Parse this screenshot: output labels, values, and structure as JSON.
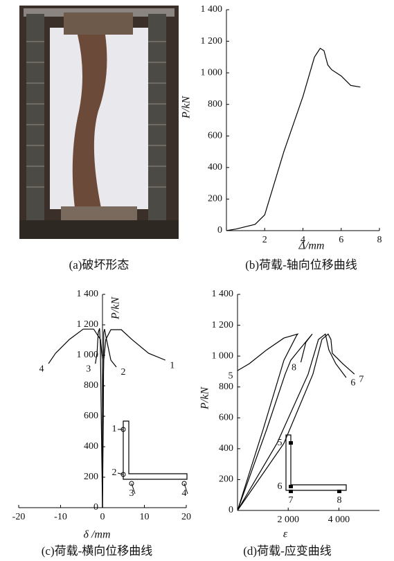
{
  "photo": {
    "caption": "(a)破坏形态"
  },
  "chart_data": [
    {
      "type": "line",
      "caption": "(b)荷载-轴向位移曲线",
      "x_label": "Δ/mm",
      "y_label": "P/kN",
      "xlim": [
        0,
        8
      ],
      "ylim": [
        0,
        1400
      ],
      "xticks": [
        2,
        4,
        6,
        8
      ],
      "yticks": [
        0,
        200,
        400,
        600,
        800,
        {
          "value": 1000,
          "label": "1 000"
        },
        {
          "value": 1200,
          "label": "1 200"
        },
        {
          "value": 1400,
          "label": "1 400"
        }
      ],
      "series": [
        {
          "color": "#000000",
          "x": [
            0,
            0.5,
            1.5,
            2,
            3,
            4,
            4.6,
            4.9,
            5.1,
            5.3,
            5.5,
            6,
            6.5,
            7
          ],
          "values": [
            0,
            10,
            40,
            100,
            500,
            850,
            1100,
            1155,
            1140,
            1050,
            1020,
            980,
            920,
            910
          ]
        }
      ]
    },
    {
      "type": "line",
      "caption": "(c)荷载-横向位移曲线",
      "x_label": "δ /mm",
      "y_label": "P/kN",
      "xlim": [
        -20,
        20
      ],
      "ylim": [
        0,
        1400
      ],
      "xticks": [
        -20,
        -10,
        0,
        10,
        20
      ],
      "yticks": [
        0,
        200,
        400,
        600,
        800,
        {
          "value": 1000,
          "label": "1 000"
        },
        {
          "value": 1200,
          "label": "1 200"
        },
        {
          "value": 1400,
          "label": "1 400"
        }
      ],
      "inset_labels": [
        "1",
        "2",
        "3",
        "4"
      ],
      "series": [
        {
          "name": "1",
          "color": "#000000",
          "x": [
            0,
            0,
            0.3,
            0.8,
            2,
            4.5,
            7,
            11,
            15
          ],
          "values": [
            0,
            605,
            968,
            1104,
            1168,
            1168,
            1104,
            1013,
            968
          ]
        },
        {
          "name": "2",
          "color": "#000000",
          "x": [
            0,
            0.2,
            0.3,
            0.5,
            0.8,
            2,
            3.3
          ],
          "values": [
            0,
            605,
            1150,
            1172,
            1127,
            968,
            923
          ]
        },
        {
          "name": "3",
          "color": "#000000",
          "x": [
            0,
            -0.3,
            -0.5,
            -0.7,
            -1,
            -1.3,
            -1.7
          ],
          "values": [
            0,
            605,
            1059,
            1177,
            1150,
            1013,
            945
          ]
        },
        {
          "name": "4",
          "color": "#000000",
          "x": [
            0,
            0,
            -0.5,
            -2.1,
            -4.6,
            -7.9,
            -11.2,
            -12.9
          ],
          "values": [
            0,
            968,
            1104,
            1172,
            1172,
            1104,
            1013,
            945
          ]
        }
      ]
    },
    {
      "type": "line",
      "caption": "(d)荷载-应变曲线",
      "x_label": "ε",
      "y_label": "P/kN",
      "xlim": [
        0,
        5600
      ],
      "ylim": [
        0,
        1400
      ],
      "xticks": [
        {
          "value": 2000,
          "label": "2 000"
        },
        {
          "value": 4000,
          "label": "4 000"
        }
      ],
      "yticks": [
        0,
        200,
        400,
        600,
        800,
        {
          "value": 1000,
          "label": "1 000"
        },
        {
          "value": 1200,
          "label": "1 200"
        },
        {
          "value": 1400,
          "label": "1 400"
        }
      ],
      "inset_labels": [
        "5",
        "6",
        "7",
        "8"
      ],
      "series": [
        {
          "name": "5",
          "color": "#000000",
          "x": [
            0,
            1010,
            1830,
            2320,
            2375,
            1830,
            1147,
            464,
            0
          ],
          "values": [
            0,
            525,
            973,
            1130,
            1143,
            1117,
            1040,
            951,
            906
          ]
        },
        {
          "name": "6",
          "color": "#000000",
          "x": [
            0,
            1556,
            2785,
            3194,
            3467,
            3604,
            3877,
            4286
          ],
          "values": [
            0,
            435,
            883,
            1108,
            1143,
            1040,
            951,
            861
          ]
        },
        {
          "name": "7",
          "color": "#000000",
          "x": [
            0,
            1830,
            2976,
            3330,
            3576,
            3685,
            3740,
            4150,
            4614
          ],
          "values": [
            0,
            435,
            883,
            1108,
            1143,
            1108,
            1018,
            951,
            883
          ]
        },
        {
          "name": "8",
          "color": "#000000",
          "x": [
            0,
            1150,
            1880,
            2100,
            2430,
            2950,
            2700,
            2500
          ],
          "values": [
            0,
            525,
            883,
            973,
            1040,
            1143,
            1090,
            960
          ]
        }
      ]
    }
  ]
}
